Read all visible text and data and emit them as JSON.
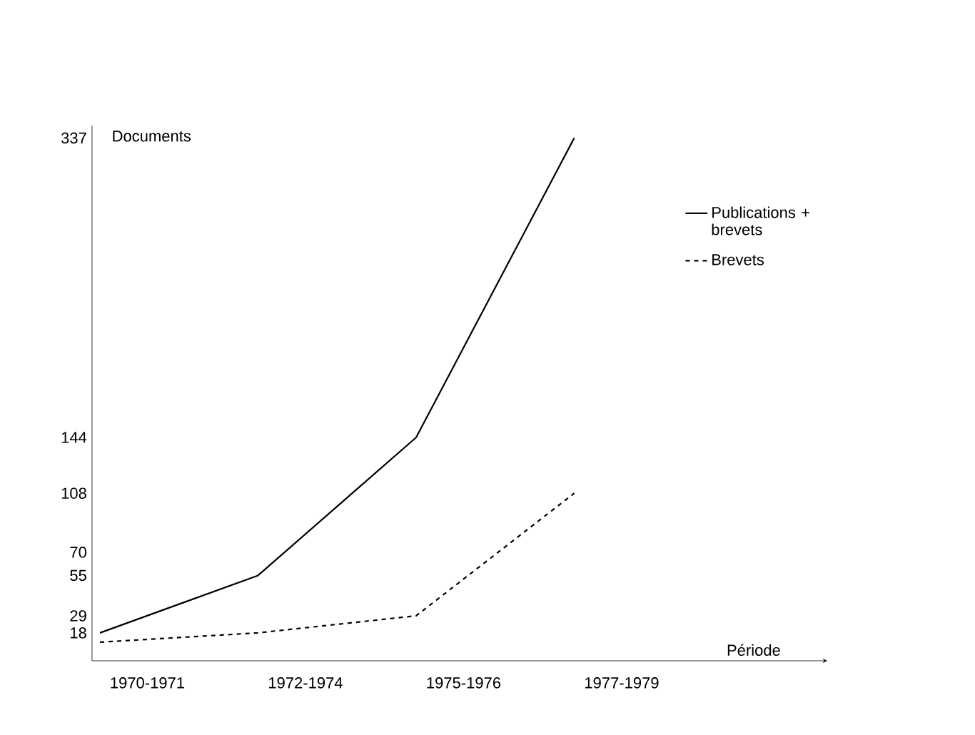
{
  "chart_data": {
    "type": "line",
    "xlabel": "Période",
    "ylabel": "Documents",
    "categories": [
      "1970-1971",
      "1972-1974",
      "1975-1976",
      "1977-1979"
    ],
    "series": [
      {
        "name": "Publications + brevets",
        "color": "#000000",
        "line_style": "solid",
        "values": [
          18,
          55,
          144,
          337
        ]
      },
      {
        "name": "Brevets",
        "color": "#000000",
        "line_style": "dashed",
        "values": [
          12,
          18,
          29,
          108
        ]
      }
    ],
    "ylim": [
      0,
      345
    ],
    "yticks": [
      18,
      29,
      55,
      70,
      108,
      144,
      337
    ],
    "legend": "right",
    "marker": "none"
  }
}
